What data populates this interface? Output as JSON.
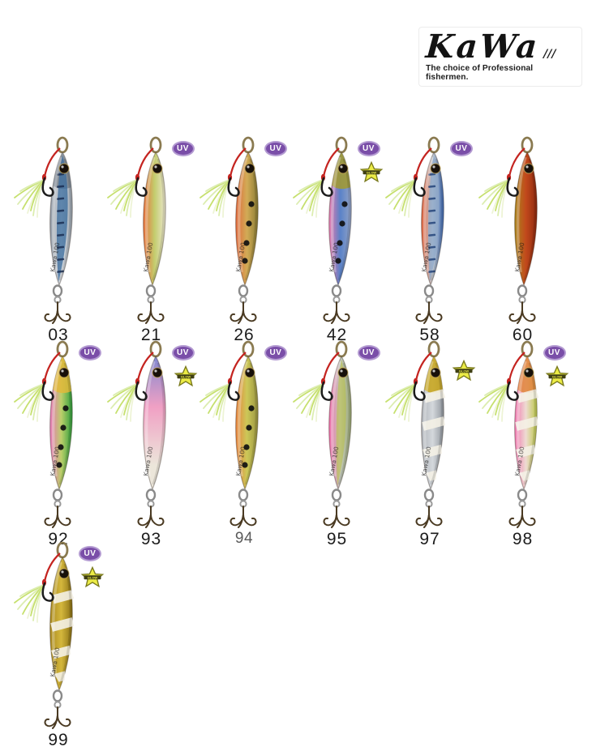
{
  "logo": {
    "brand": "KaWa",
    "suffix": "///",
    "tagline": "The choice of Professional fishermen."
  },
  "badge_defs": {
    "uv": {
      "label": "UV",
      "bg": "#7a4ea8",
      "border": "#b39ad1",
      "text_color": "#ffffff"
    },
    "glow": {
      "label": "GLOW",
      "fill": "#ecec46",
      "stroke": "#7a7a1e",
      "band": "#3f3f14",
      "band_text": "#ecec46"
    }
  },
  "lure_defaults": {
    "body_text": "Kawa 100",
    "cord_color": "#c42420",
    "feather_colors": [
      "#dcedb0",
      "#c6e06e",
      "#eef4d6"
    ],
    "hook_color": "#1c1c1c",
    "treble_color": "#4a3a22",
    "ring_color": "#8a7a50"
  },
  "lures": [
    {
      "label": "03",
      "uv": false,
      "glow": false,
      "dir": "h",
      "stops": [
        "#8f98a4",
        "#e0e4e8",
        "#96a0ab"
      ],
      "pattern": "centerband",
      "band_color": "#3e6e9e",
      "dash_color": "#1a2e52",
      "head": "#7a848e"
    },
    {
      "label": "21",
      "uv": true,
      "glow": false,
      "dir": "h",
      "stops": [
        "#e8713c",
        "#c3cc6d",
        "#ece7cf"
      ],
      "pattern": "none"
    },
    {
      "label": "26",
      "uv": true,
      "glow": false,
      "dir": "h",
      "stops": [
        "#e0693c",
        "#d2ab56",
        "#8a7c34"
      ],
      "pattern": "dots"
    },
    {
      "label": "42",
      "uv": true,
      "glow": true,
      "dir": "h",
      "stops": [
        "#e87aae",
        "#5a82c8",
        "#93a3c6"
      ],
      "pattern": "dots",
      "head": "#a39a2e"
    },
    {
      "label": "58",
      "uv": true,
      "glow": false,
      "dir": "h",
      "stops": [
        "#e0603a",
        "#c6cdd3",
        "#3c68b2"
      ],
      "pattern": "centerband",
      "band_color": "#8fa9c9",
      "dash_color": "#24447a"
    },
    {
      "label": "60",
      "uv": false,
      "glow": false,
      "dir": "h",
      "stops": [
        "#ab851c",
        "#c2491c",
        "#8f2a10"
      ],
      "pattern": "none"
    },
    {
      "label": "92",
      "uv": true,
      "glow": false,
      "dir": "h",
      "stops": [
        "#e878b8",
        "#bccf6a",
        "#2f9e3c"
      ],
      "pattern": "dots",
      "head": "#e2b93a"
    },
    {
      "label": "93",
      "uv": true,
      "glow": true,
      "dir": "v",
      "stops": [
        "#8088d0",
        "#f0a0c4",
        "#ece6da"
      ],
      "offsets": [
        0,
        38,
        82
      ],
      "pattern": "none"
    },
    {
      "label": "94",
      "uv": true,
      "glow": false,
      "dir": "h",
      "stops": [
        "#e8823c",
        "#ccc858",
        "#9a9440"
      ],
      "pattern": "dots",
      "label_style": "light"
    },
    {
      "label": "95",
      "uv": true,
      "glow": false,
      "dir": "h",
      "stops": [
        "#f06aa8",
        "#c4cabe",
        "#9aa872"
      ],
      "pattern": "midstripe",
      "band_color": "#b8c040"
    },
    {
      "label": "97",
      "uv": false,
      "glow": true,
      "dir": "h",
      "stops": [
        "#aeb2b8",
        "#d4d8dc",
        "#8f959c"
      ],
      "pattern": "zebra",
      "head": "#c8a418"
    },
    {
      "label": "98",
      "uv": true,
      "glow": true,
      "dir": "h",
      "stops": [
        "#f078b0",
        "#eedbd2",
        "#bcc848"
      ],
      "pattern": "zebra",
      "head": "#e0823a"
    },
    {
      "label": "99",
      "uv": true,
      "glow": true,
      "dir": "h",
      "stops": [
        "#a8881e",
        "#d4b73c",
        "#8a7014"
      ],
      "pattern": "zebra"
    }
  ]
}
